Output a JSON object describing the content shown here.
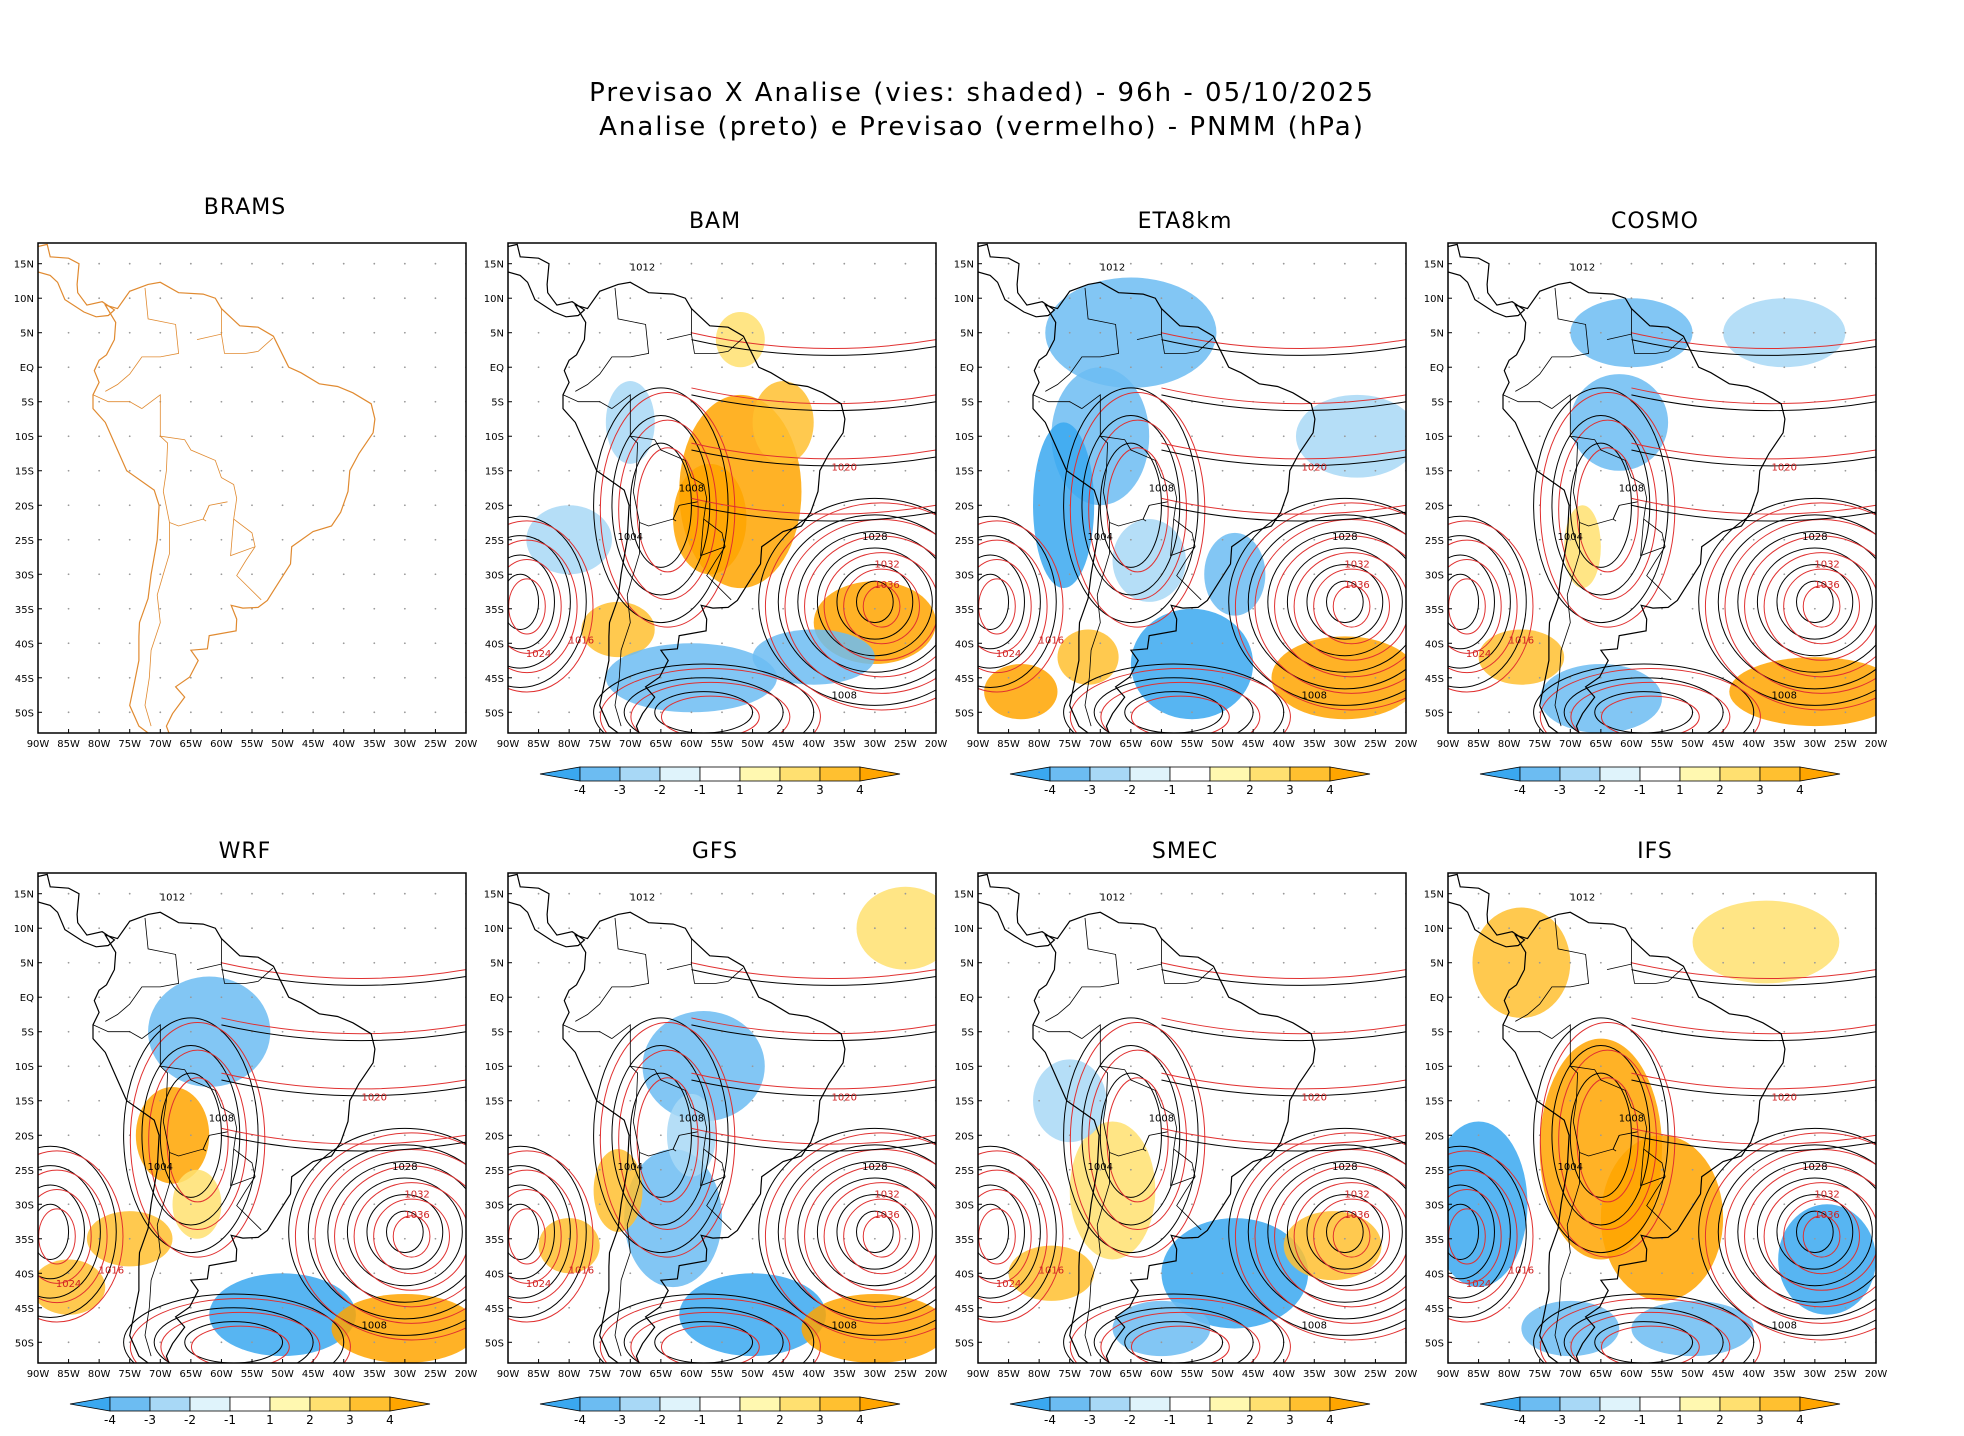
{
  "title": {
    "line1": "Previsao X Analise (vies: shaded) - 96h - 05/10/2025",
    "line2": "Analise (preto) e Previsao (vermelho) - PNMM (hPa)"
  },
  "panels": [
    {
      "name": "BRAMS",
      "has_colorbar": false
    },
    {
      "name": "BAM",
      "has_colorbar": true
    },
    {
      "name": "ETA8km",
      "has_colorbar": true
    },
    {
      "name": "COSMO",
      "has_colorbar": true
    },
    {
      "name": "WRF",
      "has_colorbar": true
    },
    {
      "name": "GFS",
      "has_colorbar": true
    },
    {
      "name": "SMEC",
      "has_colorbar": true
    },
    {
      "name": "IFS",
      "has_colorbar": true
    }
  ],
  "axes": {
    "lat_labels": [
      "15N",
      "10N",
      "5N",
      "EQ",
      "5S",
      "10S",
      "15S",
      "20S",
      "25S",
      "30S",
      "35S",
      "40S",
      "45S",
      "50S"
    ],
    "lon_labels": [
      "90W",
      "85W",
      "80W",
      "75W",
      "70W",
      "65W",
      "60W",
      "55W",
      "50W",
      "45W",
      "40W",
      "35W",
      "30W",
      "25W",
      "20W"
    ]
  },
  "colorbar": {
    "labels": [
      "-4",
      "-3",
      "-2",
      "-1",
      "1",
      "2",
      "3",
      "4"
    ],
    "colors": [
      "#3aa8f0",
      "#6cbcf2",
      "#a8d8f6",
      "#dff3fb",
      "#ffffff",
      "#fff8b0",
      "#ffe070",
      "#ffc030",
      "#ffa500"
    ]
  },
  "colors": {
    "analysis_contour": "#000000",
    "forecast_contour": "#e03030",
    "coastline_brams": "#e08a30",
    "grid": "#999999"
  },
  "isobar_labels": [
    "1004",
    "1008",
    "1012",
    "1016",
    "1020",
    "1024",
    "1028",
    "1032",
    "1036"
  ]
}
